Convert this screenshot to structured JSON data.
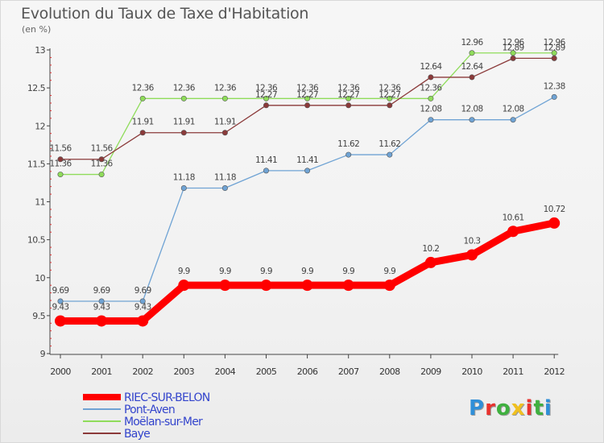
{
  "title": "Evolution du Taux de Taxe d'Habitation",
  "unit_label": "(en %)",
  "logo": {
    "text": "Proxiti",
    "letters": [
      "P",
      "r",
      "o",
      "x",
      "i",
      "t",
      "i"
    ],
    "colors": [
      "#2f8fd8",
      "#e8322e",
      "#3fb03f",
      "#f0c020",
      "#e8322e",
      "#3fb03f",
      "#2f8fd8"
    ]
  },
  "chart_data": {
    "type": "line",
    "categories": [
      "2000",
      "2001",
      "2002",
      "2003",
      "2004",
      "2005",
      "2006",
      "2007",
      "2008",
      "2009",
      "2010",
      "2011",
      "2012"
    ],
    "ylim": [
      9,
      13
    ],
    "yticks": [
      "9",
      "9.5",
      "10",
      "10.5",
      "11",
      "11.5",
      "12",
      "12.5",
      "13"
    ],
    "grid": false,
    "legend_position": "bottom-left",
    "series": [
      {
        "name": "RIEC-SUR-BELON",
        "color": "#ff0000",
        "values": [
          9.43,
          9.43,
          9.43,
          9.9,
          9.9,
          9.9,
          9.9,
          9.9,
          9.9,
          10.2,
          10.3,
          10.61,
          10.72
        ],
        "labels": [
          "9.43",
          "9.43",
          "9.43",
          "9.9",
          "9.9",
          "9.9",
          "9.9",
          "9.9",
          "9.9",
          "10.2",
          "10.3",
          "10.61",
          "10.72"
        ]
      },
      {
        "name": "Pont-Aven",
        "color": "#6fa3d4",
        "values": [
          9.69,
          9.69,
          9.69,
          11.18,
          11.18,
          11.41,
          11.41,
          11.62,
          11.62,
          12.08,
          12.08,
          12.08,
          12.38
        ],
        "labels": [
          "9.69",
          "9.69",
          "9.69",
          "11.18",
          "11.18",
          "11.41",
          "11.41",
          "11.62",
          "11.62",
          "12.08",
          "12.08",
          "12.08",
          "12.38"
        ]
      },
      {
        "name": "Moëlan-sur-Mer",
        "color": "#8fdc5a",
        "values": [
          11.36,
          11.36,
          12.36,
          12.36,
          12.36,
          12.36,
          12.36,
          12.36,
          12.36,
          12.36,
          12.96,
          12.96,
          12.96
        ],
        "labels": [
          "11.36",
          "11.36",
          "12.36",
          "12.36",
          "12.36",
          "12.36",
          "12.36",
          "12.36",
          "12.36",
          "12.36",
          "12.96",
          "12.96",
          "12.96"
        ]
      },
      {
        "name": "Baye",
        "color": "#8b3a3a",
        "values": [
          11.56,
          11.56,
          11.91,
          11.91,
          11.91,
          12.27,
          12.27,
          12.27,
          12.27,
          12.64,
          12.64,
          12.89,
          12.89
        ],
        "labels": [
          "11.56",
          "11.56",
          "11.91",
          "11.91",
          "11.91",
          "12.27",
          "12.27",
          "12.27",
          "12.27",
          "12.64",
          "12.64",
          "12.89",
          "12.89"
        ]
      }
    ]
  }
}
